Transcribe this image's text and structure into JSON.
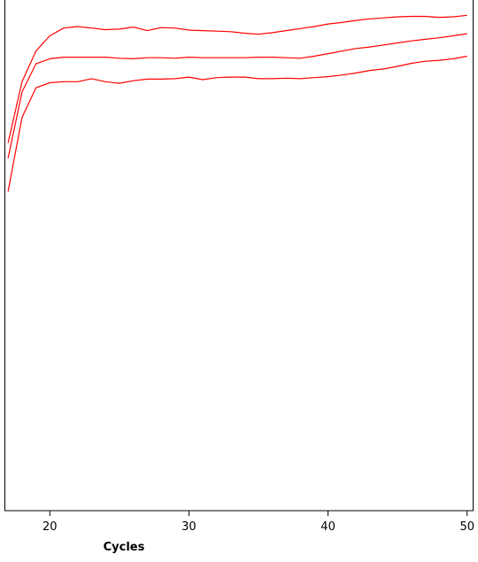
{
  "chart_data": {
    "type": "line",
    "title": "",
    "xlabel": "Cycles",
    "ylabel": "",
    "xlim": [
      16.8,
      50.4
    ],
    "ylim": [
      0,
      1
    ],
    "x_ticks": [
      20,
      30,
      40,
      50
    ],
    "grid": false,
    "legend": "none",
    "line_color": "#ff0000",
    "series": [
      {
        "x": [
          17,
          18,
          19,
          20,
          21,
          22,
          23,
          24,
          25,
          26,
          27,
          28,
          29,
          30,
          31,
          32,
          33,
          34,
          35,
          36,
          37,
          38,
          39,
          40,
          41,
          42,
          43,
          44,
          45,
          46,
          47,
          48,
          49,
          50
        ],
        "values": [
          0.72,
          0.84,
          0.9,
          0.93,
          0.945,
          0.948,
          0.945,
          0.942,
          0.943,
          0.947,
          0.94,
          0.946,
          0.945,
          0.941,
          0.94,
          0.939,
          0.938,
          0.935,
          0.933,
          0.936,
          0.94,
          0.944,
          0.948,
          0.953,
          0.956,
          0.96,
          0.963,
          0.965,
          0.967,
          0.968,
          0.968,
          0.966,
          0.967,
          0.97
        ]
      },
      {
        "x": [
          17,
          18,
          19,
          20,
          21,
          22,
          23,
          24,
          25,
          26,
          27,
          28,
          29,
          30,
          31,
          32,
          33,
          34,
          35,
          36,
          37,
          38,
          39,
          40,
          41,
          42,
          43,
          44,
          45,
          46,
          47,
          48,
          49,
          50
        ],
        "values": [
          0.69,
          0.82,
          0.875,
          0.885,
          0.888,
          0.888,
          0.888,
          0.888,
          0.886,
          0.885,
          0.887,
          0.887,
          0.886,
          0.888,
          0.887,
          0.887,
          0.887,
          0.887,
          0.888,
          0.888,
          0.887,
          0.886,
          0.89,
          0.895,
          0.9,
          0.905,
          0.908,
          0.912,
          0.916,
          0.92,
          0.923,
          0.926,
          0.93,
          0.934
        ]
      },
      {
        "x": [
          17,
          18,
          19,
          20,
          21,
          22,
          23,
          24,
          25,
          26,
          27,
          28,
          29,
          30,
          31,
          32,
          33,
          34,
          35,
          36,
          37,
          38,
          39,
          40,
          41,
          42,
          43,
          44,
          45,
          46,
          47,
          48,
          49,
          50
        ],
        "values": [
          0.625,
          0.77,
          0.828,
          0.838,
          0.84,
          0.84,
          0.846,
          0.84,
          0.837,
          0.842,
          0.845,
          0.845,
          0.846,
          0.849,
          0.844,
          0.848,
          0.849,
          0.849,
          0.846,
          0.846,
          0.847,
          0.846,
          0.848,
          0.85,
          0.853,
          0.857,
          0.862,
          0.865,
          0.87,
          0.876,
          0.88,
          0.882,
          0.885,
          0.89
        ]
      }
    ]
  }
}
